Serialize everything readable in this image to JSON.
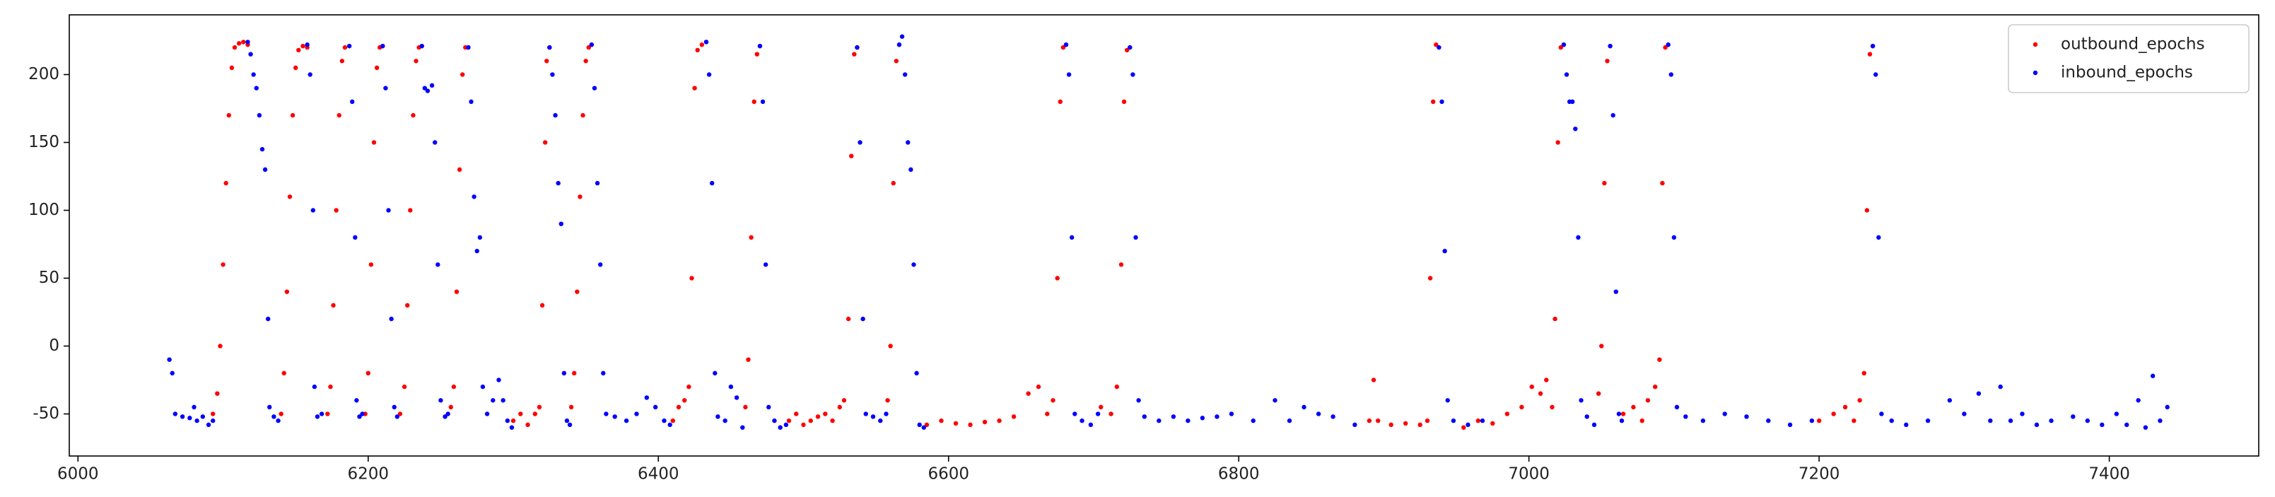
{
  "chart_data": {
    "type": "scatter",
    "xlim": [
      5994,
      7503
    ],
    "ylim": [
      -81,
      244
    ],
    "xticks": [
      6000,
      6200,
      6400,
      6600,
      6800,
      7000,
      7200,
      7400
    ],
    "yticks": [
      -50,
      0,
      50,
      100,
      150,
      200
    ],
    "legend": "upper right",
    "series": [
      {
        "name": "outbound_epochs",
        "color": "#ff0000",
        "x": [
          6093,
          6096,
          6098,
          6100,
          6102,
          6104,
          6106,
          6108,
          6111,
          6114,
          6117,
          6140,
          6142,
          6144,
          6146,
          6148,
          6150,
          6152,
          6155,
          6158,
          6172,
          6174,
          6176,
          6178,
          6180,
          6182,
          6184,
          6187,
          6198,
          6200,
          6202,
          6204,
          6206,
          6208,
          6210,
          6222,
          6225,
          6227,
          6229,
          6231,
          6233,
          6235,
          6237,
          6257,
          6259,
          6261,
          6263,
          6265,
          6267,
          6269,
          6300,
          6305,
          6310,
          6315,
          6318,
          6320,
          6322,
          6323,
          6325,
          6340,
          6342,
          6344,
          6346,
          6348,
          6350,
          6352,
          6354,
          6410,
          6414,
          6418,
          6421,
          6423,
          6425,
          6427,
          6430,
          6433,
          6460,
          6462,
          6464,
          6466,
          6468,
          6470,
          6490,
          6495,
          6500,
          6505,
          6510,
          6515,
          6520,
          6525,
          6528,
          6531,
          6533,
          6535,
          6537,
          6558,
          6560,
          6562,
          6564,
          6566,
          6585,
          6595,
          6605,
          6615,
          6625,
          6635,
          6645,
          6655,
          6662,
          6668,
          6672,
          6675,
          6677,
          6679,
          6681,
          6705,
          6712,
          6716,
          6719,
          6721,
          6723,
          6725,
          6890,
          6893,
          6896,
          6905,
          6915,
          6925,
          6930,
          6932,
          6934,
          6936,
          6955,
          6965,
          6975,
          6985,
          6995,
          7002,
          7008,
          7012,
          7016,
          7018,
          7020,
          7022,
          7024,
          7048,
          7050,
          7052,
          7054,
          7056,
          7065,
          7072,
          7078,
          7082,
          7087,
          7090,
          7092,
          7094,
          7096,
          7200,
          7210,
          7218,
          7224,
          7228,
          7231,
          7233,
          7235,
          7237
        ],
        "values": [
          -50,
          -35,
          0,
          60,
          120,
          170,
          205,
          220,
          223,
          224,
          222,
          -50,
          -20,
          40,
          110,
          170,
          205,
          218,
          221,
          220,
          -50,
          -30,
          30,
          100,
          170,
          210,
          220,
          221,
          -50,
          -20,
          60,
          150,
          205,
          220,
          221,
          -50,
          -30,
          30,
          100,
          170,
          210,
          220,
          221,
          -45,
          -30,
          40,
          130,
          200,
          220,
          220,
          -55,
          -50,
          -58,
          -50,
          -45,
          30,
          150,
          210,
          220,
          -45,
          -20,
          40,
          110,
          170,
          210,
          220,
          222,
          -55,
          -45,
          -40,
          -30,
          50,
          190,
          218,
          222,
          224,
          -45,
          -10,
          80,
          180,
          215,
          221,
          -55,
          -50,
          -58,
          -55,
          -52,
          -50,
          -55,
          -45,
          -40,
          20,
          140,
          215,
          220,
          -40,
          0,
          120,
          210,
          222,
          -58,
          -55,
          -57,
          -58,
          -56,
          -55,
          -52,
          -35,
          -30,
          -50,
          -40,
          50,
          180,
          220,
          222,
          -45,
          -50,
          -30,
          60,
          180,
          218,
          220,
          -55,
          -25,
          -55,
          -58,
          -57,
          -58,
          -55,
          50,
          180,
          222,
          -60,
          -55,
          -57,
          -50,
          -45,
          -30,
          -35,
          -25,
          -45,
          20,
          150,
          220,
          222,
          -35,
          0,
          120,
          210,
          221,
          -50,
          -45,
          -55,
          -40,
          -30,
          -10,
          120,
          220,
          222,
          -55,
          -50,
          -45,
          -55,
          -40,
          -20,
          100,
          215,
          221
        ]
      },
      {
        "name": "inbound_epochs",
        "color": "#0000ff",
        "x": [
          6063,
          6065,
          6067,
          6072,
          6077,
          6080,
          6082,
          6086,
          6090,
          6093,
          6117,
          6119,
          6121,
          6123,
          6125,
          6127,
          6129,
          6131,
          6132,
          6135,
          6138,
          6158,
          6160,
          6162,
          6163,
          6165,
          6168,
          6187,
          6189,
          6191,
          6192,
          6194,
          6196,
          6210,
          6212,
          6214,
          6216,
          6218,
          6220,
          6237,
          6239,
          6241,
          6244,
          6246,
          6248,
          6250,
          6253,
          6255,
          6269,
          6271,
          6273,
          6275,
          6277,
          6279,
          6282,
          6286,
          6290,
          6293,
          6296,
          6299,
          6325,
          6327,
          6329,
          6331,
          6333,
          6335,
          6337,
          6339,
          6354,
          6356,
          6358,
          6360,
          6362,
          6364,
          6370,
          6378,
          6385,
          6392,
          6398,
          6404,
          6408,
          6433,
          6435,
          6437,
          6439,
          6441,
          6446,
          6450,
          6454,
          6458,
          6470,
          6472,
          6474,
          6476,
          6480,
          6484,
          6488,
          6537,
          6539,
          6541,
          6543,
          6548,
          6553,
          6557,
          6566,
          6568,
          6570,
          6572,
          6574,
          6576,
          6578,
          6580,
          6583,
          6681,
          6683,
          6685,
          6687,
          6692,
          6698,
          6703,
          6725,
          6727,
          6729,
          6731,
          6735,
          6745,
          6755,
          6765,
          6775,
          6785,
          6795,
          6810,
          6825,
          6835,
          6845,
          6855,
          6865,
          6880,
          6938,
          6940,
          6942,
          6944,
          6948,
          6958,
          6968,
          7024,
          7026,
          7028,
          7030,
          7032,
          7034,
          7036,
          7040,
          7045,
          7056,
          7058,
          7060,
          7062,
          7064,
          7096,
          7098,
          7100,
          7102,
          7108,
          7120,
          7135,
          7150,
          7165,
          7180,
          7195,
          7237,
          7239,
          7241,
          7243,
          7250,
          7260,
          7275,
          7290,
          7300,
          7310,
          7318,
          7325,
          7332,
          7340,
          7350,
          7360,
          7375,
          7385,
          7395,
          7405,
          7412,
          7420,
          7425,
          7430,
          7435,
          7440
        ],
        "values": [
          -10,
          -20,
          -50,
          -52,
          -53,
          -45,
          -55,
          -52,
          -58,
          -55,
          224,
          215,
          200,
          190,
          170,
          145,
          130,
          20,
          -45,
          -52,
          -55,
          222,
          200,
          100,
          -30,
          -52,
          -50,
          221,
          180,
          80,
          -40,
          -52,
          -50,
          221,
          190,
          100,
          20,
          -45,
          -52,
          221,
          190,
          188,
          192,
          150,
          60,
          -40,
          -52,
          -50,
          220,
          180,
          110,
          70,
          80,
          -30,
          -50,
          -40,
          -25,
          -40,
          -55,
          -60,
          220,
          200,
          170,
          120,
          90,
          -20,
          -55,
          -58,
          222,
          190,
          120,
          60,
          -20,
          -50,
          -52,
          -55,
          -50,
          -38,
          -45,
          -55,
          -58,
          224,
          200,
          120,
          -20,
          -52,
          -55,
          -30,
          -38,
          -60,
          221,
          180,
          60,
          -45,
          -55,
          -60,
          -58,
          220,
          150,
          20,
          -50,
          -52,
          -55,
          -50,
          222,
          228,
          200,
          150,
          130,
          60,
          -20,
          -58,
          -60,
          222,
          200,
          80,
          -50,
          -55,
          -58,
          -50,
          220,
          200,
          80,
          -40,
          -52,
          -55,
          -52,
          -55,
          -53,
          -52,
          -50,
          -55,
          -40,
          -55,
          -45,
          -50,
          -52,
          -58,
          220,
          180,
          70,
          -40,
          -55,
          -58,
          -55,
          222,
          200,
          180,
          180,
          160,
          80,
          -40,
          -52,
          -58,
          221,
          170,
          40,
          -50,
          -55,
          222,
          200,
          80,
          -45,
          -52,
          -55,
          -50,
          -52,
          -55,
          -58,
          -55,
          221,
          200,
          80,
          -50,
          -55,
          -58,
          -55,
          -40,
          -50,
          -35,
          -55,
          -30,
          -55,
          -50,
          -58,
          -55,
          -52,
          -55,
          -58,
          -50,
          -58,
          -40,
          -60,
          -22,
          -55,
          -45
        ]
      }
    ]
  }
}
